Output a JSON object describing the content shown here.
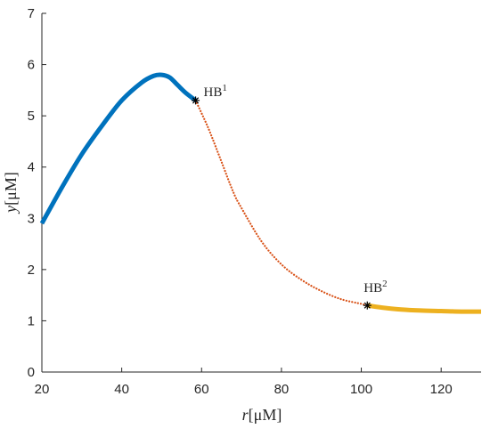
{
  "chart_data": {
    "type": "line",
    "title": "",
    "xlabel": {
      "var": "r",
      "unit": "[μM]"
    },
    "ylabel": {
      "var": "y",
      "unit": "[μM]"
    },
    "xlim": [
      20,
      130
    ],
    "ylim": [
      0,
      7
    ],
    "xticks": [
      20,
      40,
      60,
      80,
      100,
      120
    ],
    "yticks": [
      0,
      1,
      2,
      3,
      4,
      5,
      6,
      7
    ],
    "grid": false,
    "colors": {
      "stable": "#0072BD",
      "unstable": "#D95319",
      "stable_low": "#EDB120",
      "axis": "#262626",
      "marker": "#000000"
    },
    "series": [
      {
        "style": "solid-thick",
        "color": "#0072BD",
        "x": [
          20,
          25,
          30,
          35,
          40,
          45,
          48,
          50,
          52,
          54,
          56,
          58.5
        ],
        "y": [
          2.9,
          3.6,
          4.25,
          4.8,
          5.3,
          5.65,
          5.78,
          5.8,
          5.75,
          5.6,
          5.45,
          5.3
        ]
      },
      {
        "style": "dotted",
        "color": "#D95319",
        "x": [
          58.5,
          60,
          62,
          65,
          68,
          70,
          75,
          80,
          85,
          90,
          95,
          100,
          101.5
        ],
        "y": [
          5.3,
          5.05,
          4.7,
          4.1,
          3.5,
          3.2,
          2.55,
          2.1,
          1.8,
          1.58,
          1.42,
          1.33,
          1.3
        ]
      },
      {
        "style": "solid-thick",
        "color": "#EDB120",
        "x": [
          101.5,
          105,
          110,
          115,
          120,
          125,
          130
        ],
        "y": [
          1.3,
          1.26,
          1.22,
          1.2,
          1.19,
          1.18,
          1.18
        ]
      }
    ],
    "points": [
      {
        "label": "HB",
        "sup": "1",
        "x": 58.5,
        "y": 5.3
      },
      {
        "label": "HB",
        "sup": "2",
        "x": 101.5,
        "y": 1.3
      }
    ]
  }
}
